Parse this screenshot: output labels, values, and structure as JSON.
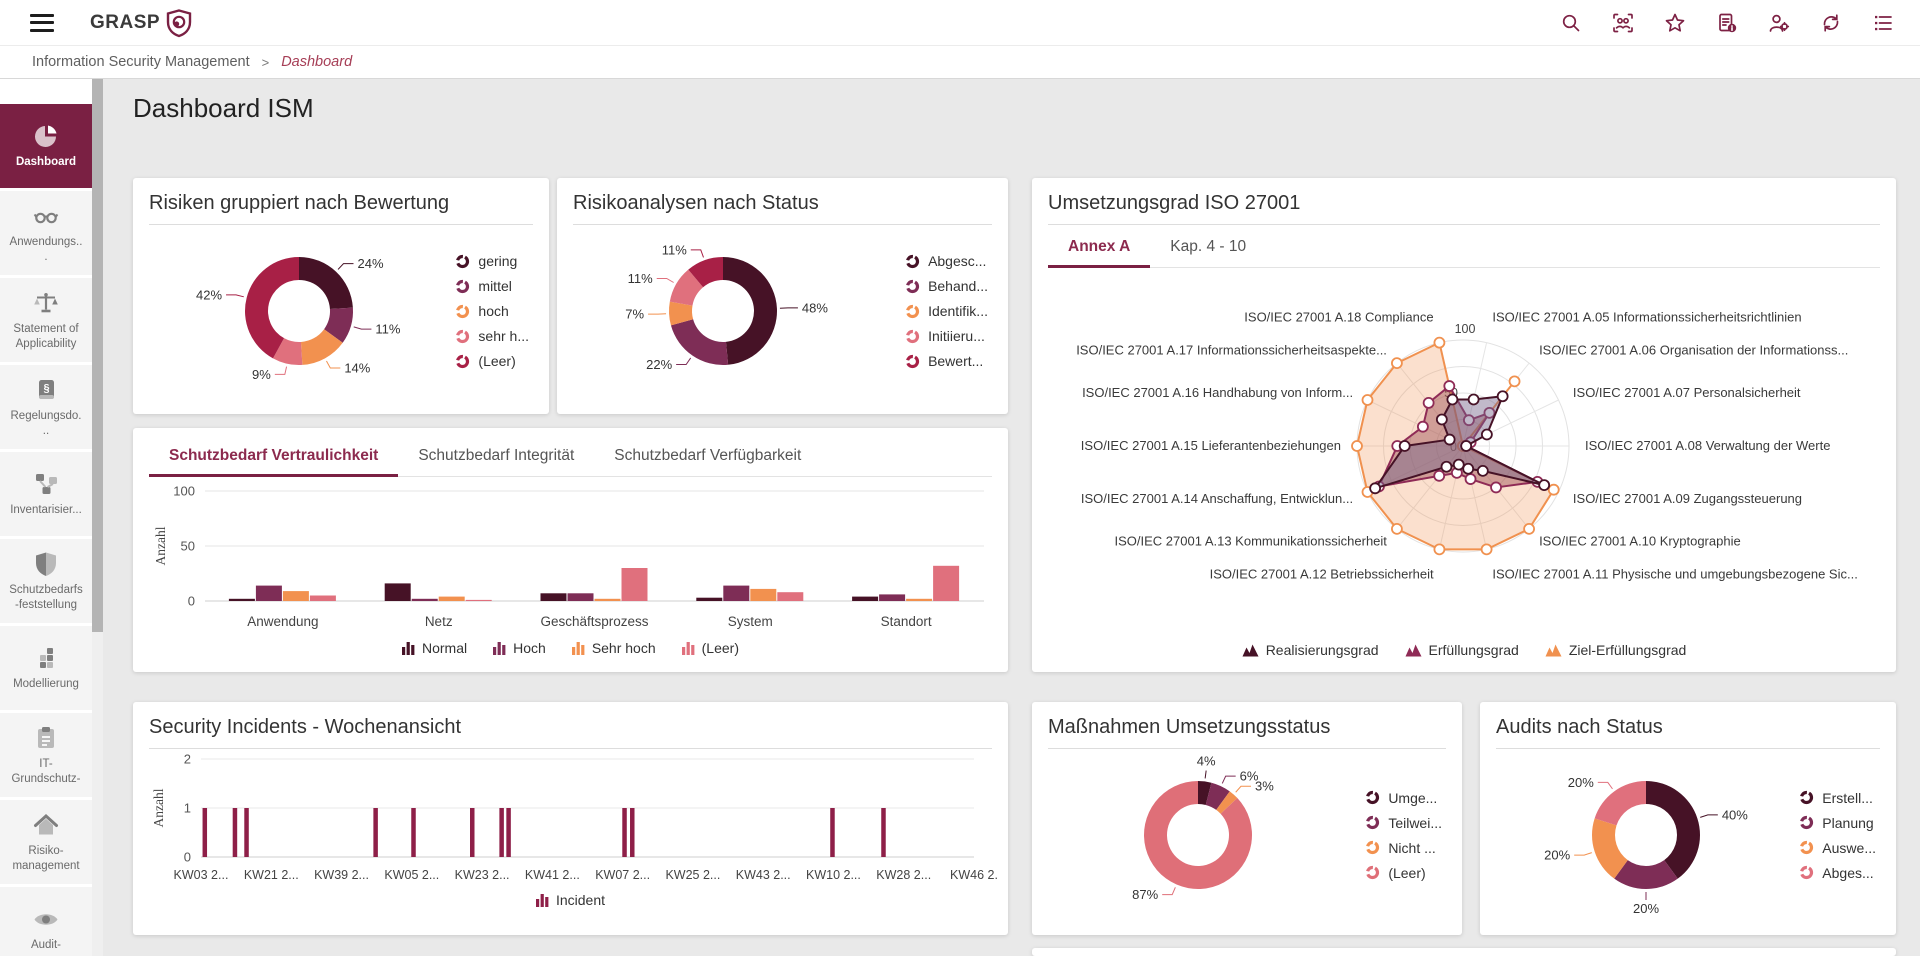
{
  "colors": {
    "brand": "#7a2043",
    "page_bg": "#e9e9e9",
    "palette": [
      "#461226",
      "#7e2d56",
      "#f2914f",
      "#e0707d",
      "#a82046"
    ],
    "incident_bar": "#8e1f48"
  },
  "topbar": {
    "logo_text": "GRASP",
    "icons": [
      "search",
      "people-scan",
      "star",
      "document-info",
      "user-gear",
      "sync",
      "list"
    ]
  },
  "breadcrumb": {
    "section": "Information Security Management",
    "separator": ">",
    "current": "Dashboard"
  },
  "sidebar": {
    "items": [
      {
        "label": "Dashboard",
        "icon": "pie-chart",
        "active": true
      },
      {
        "label": "Anwendungs...",
        "icon": "glasses",
        "active": false
      },
      {
        "label": "Statement of Applicability",
        "icon": "scales",
        "active": false
      },
      {
        "label": "Regelungsdo...",
        "icon": "law-book",
        "active": false
      },
      {
        "label": "Inventarisier...",
        "icon": "network",
        "active": false
      },
      {
        "label": "Schutzbedarfs-feststellung",
        "icon": "shield",
        "active": false
      },
      {
        "label": "Modellierung",
        "icon": "blocks",
        "active": false
      },
      {
        "label": "IT-Grundschutz-",
        "icon": "clipboard",
        "active": false
      },
      {
        "label": "Risiko-management",
        "icon": "house",
        "active": false
      },
      {
        "label": "Audit-",
        "icon": "eye",
        "active": false
      }
    ]
  },
  "page_title": "Dashboard ISM",
  "risiken": {
    "title": "Risiken gruppiert nach Bewertung",
    "type": "donut",
    "segments": [
      {
        "label": "gering",
        "value": 24,
        "color": "#461226"
      },
      {
        "label": "mittel",
        "value": 11,
        "color": "#7e2d56"
      },
      {
        "label": "hoch",
        "value": 14,
        "color": "#f2914f"
      },
      {
        "label": "sehr h...",
        "value": 9,
        "color": "#e0707d"
      },
      {
        "label": "(Leer)",
        "value": 42,
        "color": "#a82046"
      }
    ]
  },
  "risikoanalysen": {
    "title": "Risikoanalysen nach Status",
    "type": "donut",
    "segments": [
      {
        "label": "Abgesc...",
        "value": 48,
        "color": "#461226"
      },
      {
        "label": "Behand...",
        "value": 22,
        "color": "#7e2d56"
      },
      {
        "label": "Identifik...",
        "value": 7,
        "color": "#f2914f"
      },
      {
        "label": "Initiieru...",
        "value": 11,
        "color": "#e0707d"
      },
      {
        "label": "Bewert...",
        "value": 11,
        "color": "#a82046"
      }
    ]
  },
  "iso": {
    "title": "Umsetzungsgrad ISO 27001",
    "tabs": [
      {
        "label": "Annex A",
        "active": true
      },
      {
        "label": "Kap. 4 - 10",
        "active": false
      }
    ],
    "radar": {
      "type": "radar",
      "max": 100,
      "ticks": [
        0,
        50,
        100
      ],
      "axes": [
        "ISO/IEC 27001 A.05 Informationssicherheitsrichtlinien",
        "ISO/IEC 27001 A.06 Organisation der Informationss...",
        "ISO/IEC 27001 A.07 Personalsicherheit",
        "ISO/IEC 27001 A.08 Verwaltung der Werte",
        "ISO/IEC 27001 A.09 Zugangssteuerung",
        "ISO/IEC 27001 A.10 Kryptographie",
        "ISO/IEC 27001 A.11 Physische und umgebungsbezogene Sic...",
        "ISO/IEC 27001 A.12 Betriebssicherheit",
        "ISO/IEC 27001 A.13 Kommunikationssicherheit",
        "ISO/IEC 27001 A.14 Anschaffung, Entwicklun...",
        "ISO/IEC 27001 A.15 Lieferantenbeziehungen",
        "ISO/IEC 27001 A.16 Handhabung von Inform...",
        "ISO/IEC 27001 A.17 Informationssicherheitsaspekte...",
        "ISO/IEC 27001 A.18 Compliance"
      ],
      "series": [
        {
          "name": "Realisierungsgrad",
          "color": "#461226",
          "fill": "rgba(118,100,138,0.45)",
          "values": [
            45,
            60,
            25,
            3,
            85,
            30,
            22,
            18,
            25,
            92,
            55,
            14,
            32,
            45
          ]
        },
        {
          "name": "Erfüllungsgrad",
          "color": "#8f2b56",
          "fill": "rgba(156,78,84,0.45)",
          "values": [
            25,
            40,
            8,
            3,
            78,
            50,
            32,
            26,
            36,
            88,
            62,
            42,
            52,
            58
          ]
        },
        {
          "name": "Ziel-Erfüllungsgrad",
          "color": "#f0914f",
          "fill": "rgba(242,145,79,0.28)",
          "values": [
            0,
            78,
            0,
            0,
            95,
            100,
            100,
            100,
            100,
            100,
            100,
            100,
            100,
            100
          ]
        }
      ]
    }
  },
  "schutzbedarf": {
    "tabs": [
      {
        "label": "Schutzbedarf Vertraulichkeit",
        "active": true
      },
      {
        "label": "Schutzbedarf Integrität",
        "active": false
      },
      {
        "label": "Schutzbedarf Verfügbarkeit",
        "active": false
      }
    ],
    "chart": {
      "type": "bar",
      "ylabel": "Anzahl",
      "ymax": 100,
      "yticks": [
        0,
        50,
        100
      ],
      "categories": [
        "Anwendung",
        "Netz",
        "Geschäftsprozess",
        "System",
        "Standort"
      ],
      "series": [
        {
          "name": "Normal",
          "color": "#461226",
          "values": [
            2,
            16,
            7,
            3,
            4
          ]
        },
        {
          "name": "Hoch",
          "color": "#7e2d56",
          "values": [
            14,
            2,
            7,
            14,
            6
          ]
        },
        {
          "name": "Sehr hoch",
          "color": "#f2914f",
          "values": [
            9,
            4,
            2,
            11,
            2
          ]
        },
        {
          "name": "(Leer)",
          "color": "#e0707d",
          "values": [
            5,
            1,
            30,
            8,
            32
          ]
        }
      ]
    }
  },
  "incidents": {
    "title": "Security Incidents - Wochenansicht",
    "chart": {
      "type": "bar",
      "ylabel": "Anzahl",
      "ymax": 2,
      "yticks": [
        0,
        1,
        2
      ],
      "xticks": [
        "KW03 2...",
        "KW21 2...",
        "KW39 2...",
        "KW05 2...",
        "KW23 2...",
        "KW41 2...",
        "KW07 2...",
        "KW25 2...",
        "KW43 2...",
        "KW10 2...",
        "KW28 2...",
        "KW46 2."
      ],
      "bars": [
        {
          "pos": 0.002,
          "value": 1
        },
        {
          "pos": 0.041,
          "value": 1
        },
        {
          "pos": 0.056,
          "value": 1
        },
        {
          "pos": 0.223,
          "value": 1
        },
        {
          "pos": 0.272,
          "value": 1
        },
        {
          "pos": 0.348,
          "value": 1
        },
        {
          "pos": 0.386,
          "value": 1
        },
        {
          "pos": 0.395,
          "value": 1
        },
        {
          "pos": 0.545,
          "value": 1
        },
        {
          "pos": 0.555,
          "value": 1
        },
        {
          "pos": 0.814,
          "value": 1
        },
        {
          "pos": 0.88,
          "value": 1
        }
      ],
      "legend": [
        {
          "name": "Incident",
          "color": "#8e1f48"
        }
      ]
    }
  },
  "massnahmen": {
    "title": "Maßnahmen Umsetzungsstatus",
    "type": "donut",
    "segments": [
      {
        "label": "Umge...",
        "value": 4,
        "color": "#461226"
      },
      {
        "label": "Teilwei...",
        "value": 6,
        "color": "#7e2d56"
      },
      {
        "label": "Nicht ...",
        "value": 3,
        "color": "#f2914f"
      },
      {
        "label": "(Leer)",
        "value": 87,
        "color": "#df6f78"
      }
    ]
  },
  "audits": {
    "title": "Audits nach Status",
    "type": "donut",
    "segments": [
      {
        "label": "Erstell...",
        "value": 40,
        "color": "#461226"
      },
      {
        "label": "Planung",
        "value": 20,
        "color": "#7e2d56"
      },
      {
        "label": "Auswe...",
        "value": 20,
        "color": "#f2914f"
      },
      {
        "label": "Abges...",
        "value": 20,
        "color": "#e0707d"
      }
    ]
  }
}
